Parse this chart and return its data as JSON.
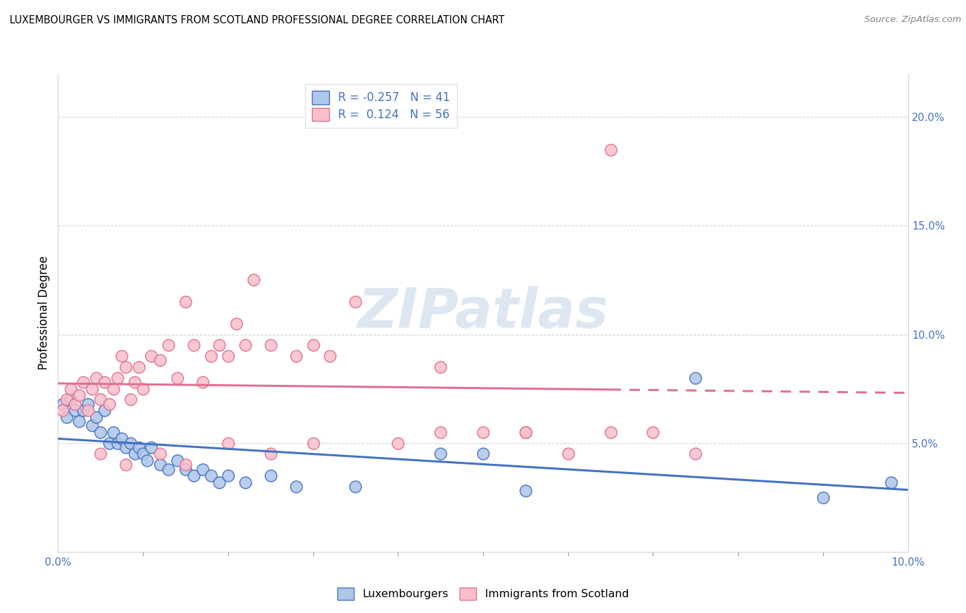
{
  "title": "LUXEMBOURGER VS IMMIGRANTS FROM SCOTLAND PROFESSIONAL DEGREE CORRELATION CHART",
  "source": "Source: ZipAtlas.com",
  "ylabel": "Professional Degree",
  "xlim": [
    0.0,
    10.0
  ],
  "ylim": [
    0.0,
    22.0
  ],
  "blue_R": -0.257,
  "blue_N": 41,
  "pink_R": 0.124,
  "pink_N": 56,
  "blue_color": "#AEC6E8",
  "pink_color": "#F9C0CB",
  "blue_edge_color": "#4472C4",
  "pink_edge_color": "#E07090",
  "blue_line_color": "#4472C4",
  "pink_line_color": "#E07090",
  "right_yticks": [
    5.0,
    10.0,
    15.0,
    20.0
  ],
  "right_ytick_labels": [
    "5.0%",
    "10.0%",
    "15.0%",
    "20.0%"
  ],
  "watermark_text": "ZIPatlas",
  "blue_scatter_x": [
    0.05,
    0.1,
    0.15,
    0.2,
    0.25,
    0.3,
    0.35,
    0.4,
    0.45,
    0.5,
    0.55,
    0.6,
    0.65,
    0.7,
    0.75,
    0.8,
    0.85,
    0.9,
    0.95,
    1.0,
    1.05,
    1.1,
    1.2,
    1.3,
    1.4,
    1.5,
    1.6,
    1.7,
    1.8,
    1.9,
    2.0,
    2.2,
    2.5,
    2.8,
    3.5,
    4.5,
    5.0,
    5.5,
    7.5,
    9.0,
    9.8
  ],
  "blue_scatter_y": [
    6.8,
    6.2,
    7.0,
    6.5,
    6.0,
    6.5,
    6.8,
    5.8,
    6.2,
    5.5,
    6.5,
    5.0,
    5.5,
    5.0,
    5.2,
    4.8,
    5.0,
    4.5,
    4.8,
    4.5,
    4.2,
    4.8,
    4.0,
    3.8,
    4.2,
    3.8,
    3.5,
    3.8,
    3.5,
    3.2,
    3.5,
    3.2,
    3.5,
    3.0,
    3.0,
    4.5,
    4.5,
    2.8,
    8.0,
    2.5,
    3.2
  ],
  "pink_scatter_x": [
    0.05,
    0.1,
    0.15,
    0.2,
    0.25,
    0.3,
    0.35,
    0.4,
    0.45,
    0.5,
    0.55,
    0.6,
    0.65,
    0.7,
    0.75,
    0.8,
    0.85,
    0.9,
    0.95,
    1.0,
    1.1,
    1.2,
    1.3,
    1.4,
    1.5,
    1.6,
    1.7,
    1.8,
    1.9,
    2.0,
    2.1,
    2.2,
    2.3,
    2.5,
    2.8,
    3.0,
    3.2,
    3.5,
    4.5,
    5.0,
    5.5,
    6.5,
    0.5,
    0.8,
    1.2,
    1.5,
    2.0,
    2.5,
    3.0,
    4.0,
    4.5,
    5.5,
    6.0,
    6.5,
    7.0,
    7.5
  ],
  "pink_scatter_y": [
    6.5,
    7.0,
    7.5,
    6.8,
    7.2,
    7.8,
    6.5,
    7.5,
    8.0,
    7.0,
    7.8,
    6.8,
    7.5,
    8.0,
    9.0,
    8.5,
    7.0,
    7.8,
    8.5,
    7.5,
    9.0,
    8.8,
    9.5,
    8.0,
    11.5,
    9.5,
    7.8,
    9.0,
    9.5,
    9.0,
    10.5,
    9.5,
    12.5,
    9.5,
    9.0,
    9.5,
    9.0,
    11.5,
    8.5,
    5.5,
    5.5,
    18.5,
    4.5,
    4.0,
    4.5,
    4.0,
    5.0,
    4.5,
    5.0,
    5.0,
    5.5,
    5.5,
    4.5,
    5.5,
    5.5,
    4.5
  ]
}
